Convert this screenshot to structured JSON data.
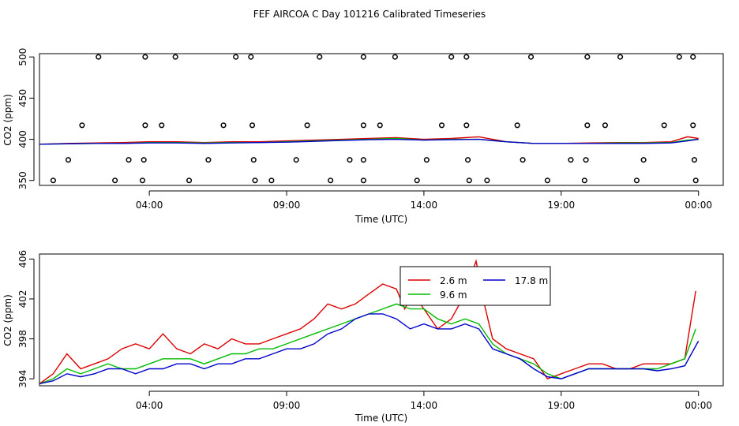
{
  "figure_title": "FEF AIRCOA C  Day 101216  Calibrated Timeseries",
  "chart_data": [
    {
      "type": "scatter",
      "title": "",
      "xlabel": "Time (UTC)",
      "ylabel": "CO2 (ppm)",
      "x_unit": "hours",
      "xlim": [
        0,
        24.9
      ],
      "ylim": [
        344,
        504
      ],
      "xticks": [
        4,
        9,
        14,
        19,
        24
      ],
      "xtick_labels": [
        "04:00",
        "09:00",
        "14:00",
        "19:00",
        "00:00"
      ],
      "yticks": [
        350,
        400,
        450,
        500
      ],
      "ytick_labels": [
        "350",
        "400",
        "450",
        "500"
      ],
      "markers": {
        "style": "open-circle",
        "color": "#000000",
        "points": [
          [
            2.15,
            500
          ],
          [
            3.85,
            500
          ],
          [
            4.95,
            500
          ],
          [
            7.15,
            500
          ],
          [
            7.7,
            500
          ],
          [
            10.2,
            500
          ],
          [
            11.8,
            500
          ],
          [
            12.95,
            500
          ],
          [
            15.0,
            500
          ],
          [
            15.55,
            500
          ],
          [
            17.9,
            500
          ],
          [
            19.95,
            500
          ],
          [
            21.15,
            500
          ],
          [
            23.3,
            500
          ],
          [
            23.8,
            500
          ],
          [
            1.55,
            417
          ],
          [
            3.85,
            417
          ],
          [
            4.45,
            417
          ],
          [
            6.7,
            417
          ],
          [
            7.75,
            417
          ],
          [
            9.75,
            417
          ],
          [
            11.8,
            417
          ],
          [
            12.4,
            417
          ],
          [
            14.65,
            417
          ],
          [
            15.55,
            417
          ],
          [
            17.4,
            417
          ],
          [
            19.95,
            417
          ],
          [
            20.6,
            417
          ],
          [
            22.75,
            417
          ],
          [
            23.8,
            417
          ],
          [
            1.05,
            375
          ],
          [
            3.25,
            375
          ],
          [
            3.8,
            375
          ],
          [
            6.15,
            375
          ],
          [
            7.8,
            375
          ],
          [
            9.35,
            375
          ],
          [
            11.3,
            375
          ],
          [
            11.8,
            375
          ],
          [
            14.1,
            375
          ],
          [
            15.6,
            375
          ],
          [
            17.6,
            375
          ],
          [
            19.35,
            375
          ],
          [
            19.9,
            375
          ],
          [
            22.0,
            375
          ],
          [
            23.85,
            375
          ],
          [
            0.5,
            350
          ],
          [
            2.75,
            350
          ],
          [
            3.75,
            350
          ],
          [
            5.45,
            350
          ],
          [
            7.85,
            350
          ],
          [
            8.45,
            350
          ],
          [
            10.6,
            350
          ],
          [
            11.8,
            350
          ],
          [
            13.75,
            350
          ],
          [
            15.65,
            350
          ],
          [
            16.3,
            350
          ],
          [
            18.5,
            350
          ],
          [
            19.85,
            350
          ],
          [
            21.75,
            350
          ],
          [
            23.9,
            350
          ]
        ]
      },
      "series": [
        {
          "name": "2.6 m",
          "color": "#dd0000",
          "x": [
            0,
            1,
            2,
            3,
            4,
            5,
            6,
            7,
            8,
            9,
            10,
            11,
            12,
            13,
            14,
            15,
            16,
            17,
            18,
            19,
            20,
            21,
            22,
            23,
            23.6,
            24
          ],
          "values": [
            394,
            395,
            395.5,
            396,
            397,
            397,
            396,
            397,
            397,
            398,
            399,
            400,
            401,
            402,
            400,
            401,
            403,
            397,
            395,
            395,
            395.5,
            396,
            396,
            397,
            403,
            401
          ]
        },
        {
          "name": "9.6 m",
          "color": "#00bb00",
          "x": [
            0,
            1,
            2,
            3,
            4,
            5,
            6,
            7,
            8,
            9,
            10,
            11,
            12,
            13,
            14,
            15,
            16,
            17,
            18,
            19,
            20,
            21,
            22,
            23,
            23.6,
            24
          ],
          "values": [
            394,
            394.5,
            395,
            395,
            396,
            396,
            395.5,
            396,
            396,
            397,
            398,
            399,
            400,
            401,
            399,
            400,
            400,
            397,
            395,
            395,
            395,
            395.5,
            395.5,
            396,
            399,
            400
          ]
        },
        {
          "name": "17.8 m",
          "color": "#0000cc",
          "x": [
            0,
            1,
            2,
            3,
            4,
            5,
            6,
            7,
            8,
            9,
            10,
            11,
            12,
            13,
            14,
            15,
            16,
            17,
            18,
            19,
            20,
            21,
            22,
            23,
            23.6,
            24
          ],
          "values": [
            394,
            394.5,
            395,
            395,
            395.5,
            395.5,
            395,
            395.5,
            396,
            396.5,
            397.5,
            398.5,
            399.5,
            400,
            399,
            399.5,
            400,
            397,
            395,
            395,
            395,
            395,
            395,
            395.5,
            398,
            400
          ]
        }
      ]
    },
    {
      "type": "line",
      "title": "",
      "xlabel": "Time (UTC)",
      "ylabel": "CO2 (ppm)",
      "x_unit": "hours",
      "xlim": [
        0,
        24.9
      ],
      "ylim": [
        393.3,
        406.5
      ],
      "xticks": [
        4,
        9,
        14,
        19,
        24
      ],
      "xtick_labels": [
        "04:00",
        "09:00",
        "14:00",
        "19:00",
        "00:00"
      ],
      "yticks": [
        394,
        398,
        402,
        406
      ],
      "ytick_labels": [
        "394",
        "398",
        "402",
        "406"
      ],
      "legend_position": "top-center",
      "legend": [
        "2.6 m",
        "9.6 m",
        "17.8 m"
      ],
      "series": [
        {
          "name": "2.6 m",
          "color": "#dd0000",
          "x": [
            0,
            0.5,
            1,
            1.5,
            2,
            2.5,
            3,
            3.5,
            4,
            4.5,
            5,
            5.5,
            6,
            6.5,
            7,
            7.5,
            8,
            8.5,
            9,
            9.5,
            10,
            10.5,
            11,
            11.5,
            12,
            12.5,
            13,
            13.3,
            13.6,
            14,
            14.5,
            15,
            15.3,
            15.6,
            15.9,
            16.2,
            16.5,
            17,
            17.5,
            18,
            18.5,
            19,
            19.5,
            20,
            20.5,
            21,
            21.5,
            22,
            22.5,
            23,
            23.5,
            23.9
          ],
          "values": [
            393.5,
            394.5,
            396.5,
            395,
            395.5,
            396,
            397,
            397.5,
            397,
            398.5,
            397,
            396.5,
            397.5,
            397,
            398,
            397.5,
            397.5,
            398,
            398.5,
            399,
            400,
            401.5,
            401,
            401.5,
            402.5,
            403.5,
            403,
            401,
            402.5,
            401,
            399,
            400,
            401.5,
            403.5,
            405.8,
            401.5,
            398,
            397,
            396.5,
            396,
            394,
            394.5,
            395,
            395.5,
            395.5,
            395,
            395,
            395.5,
            395.5,
            395.5,
            396,
            402.8
          ]
        },
        {
          "name": "9.6 m",
          "color": "#00bb00",
          "x": [
            0,
            0.5,
            1,
            1.5,
            2,
            2.5,
            3,
            3.5,
            4,
            4.5,
            5,
            5.5,
            6,
            6.5,
            7,
            7.5,
            8,
            8.5,
            9,
            9.5,
            10,
            10.5,
            11,
            11.5,
            12,
            12.5,
            13,
            13.5,
            14,
            14.5,
            15,
            15.5,
            16,
            16.5,
            17,
            17.5,
            18,
            18.5,
            19,
            19.5,
            20,
            20.5,
            21,
            21.5,
            22,
            22.5,
            23,
            23.5,
            23.9
          ],
          "values": [
            393.5,
            394,
            395,
            394.5,
            395,
            395.5,
            395,
            395,
            395.5,
            396,
            396,
            396,
            395.5,
            396,
            396.5,
            396.5,
            397,
            397,
            397.5,
            398,
            398.5,
            399,
            399.5,
            400,
            400.5,
            401,
            401.5,
            401,
            401,
            400,
            399.5,
            400,
            399.5,
            397.5,
            396.5,
            396,
            395.5,
            394.5,
            394,
            394.5,
            395,
            395,
            395,
            395,
            395,
            395,
            395.5,
            396,
            399
          ]
        },
        {
          "name": "17.8 m",
          "color": "#0000cc",
          "x": [
            0,
            0.5,
            1,
            1.5,
            2,
            2.5,
            3,
            3.5,
            4,
            4.5,
            5,
            5.5,
            6,
            6.5,
            7,
            7.5,
            8,
            8.5,
            9,
            9.5,
            10,
            10.5,
            11,
            11.5,
            12,
            12.5,
            13,
            13.5,
            14,
            14.5,
            15,
            15.5,
            16,
            16.5,
            17,
            17.5,
            18,
            18.5,
            19,
            19.5,
            20,
            20.5,
            21,
            21.5,
            22,
            22.5,
            23,
            23.5,
            24
          ],
          "values": [
            393.5,
            393.8,
            394.5,
            394.2,
            394.5,
            395,
            395,
            394.5,
            395,
            395,
            395.5,
            395.5,
            395,
            395.5,
            395.5,
            396,
            396,
            396.5,
            397,
            397,
            397.5,
            398.5,
            399,
            400,
            400.5,
            400.5,
            400,
            399,
            399.5,
            399,
            399,
            399.5,
            399,
            397,
            396.5,
            396,
            395,
            394.2,
            394,
            394.5,
            395,
            395,
            395,
            395,
            395,
            394.8,
            395,
            395.3,
            397.8
          ]
        }
      ]
    }
  ]
}
